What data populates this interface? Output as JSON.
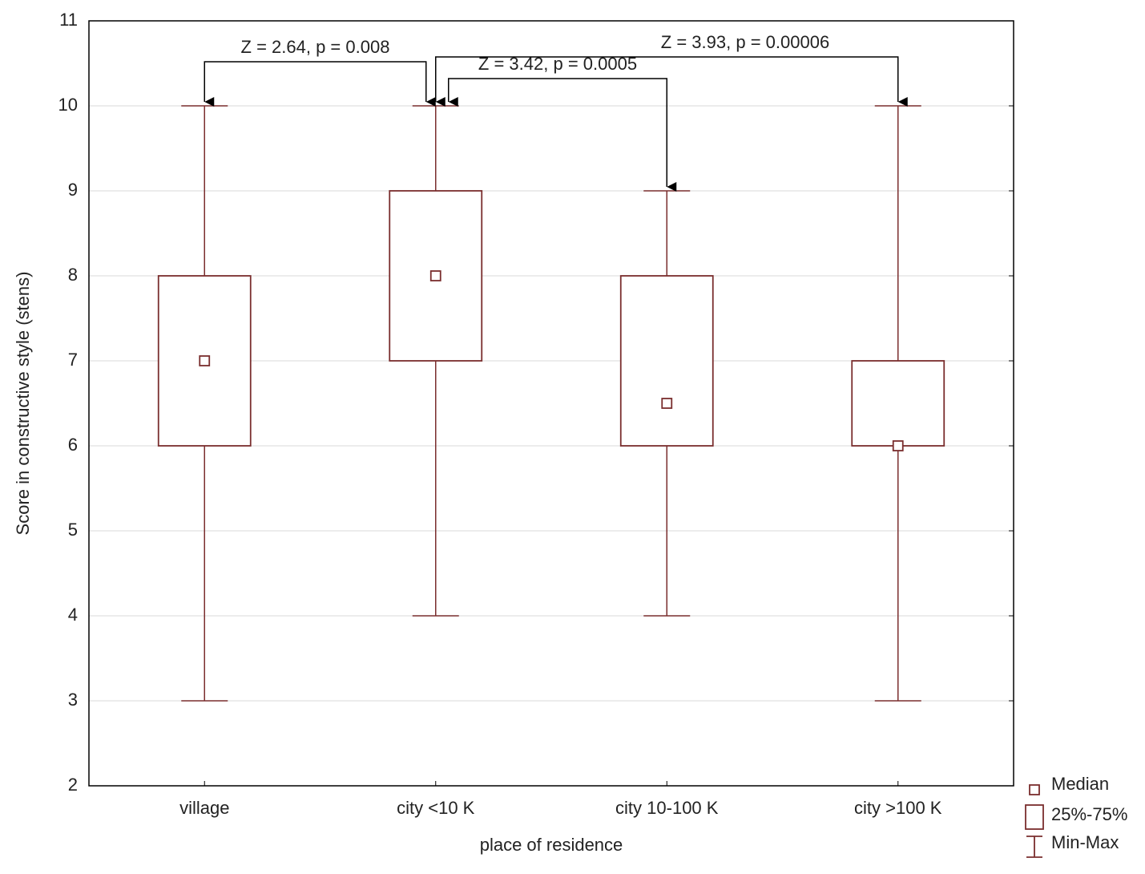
{
  "chart_data": {
    "type": "box",
    "x_label": "place of residence",
    "y_label": "Score in constructive style (stens)",
    "categories": [
      "village",
      "city <10 K",
      "city 10-100 K",
      "city >100 K"
    ],
    "min": [
      3,
      4,
      4,
      3
    ],
    "q1": [
      6,
      7,
      6,
      6
    ],
    "median": [
      7,
      8,
      6.5,
      6
    ],
    "q3": [
      8,
      9,
      8,
      7
    ],
    "max": [
      10,
      10,
      9,
      10
    ],
    "color": "#7a2e2e",
    "ylim": [
      2,
      11
    ],
    "yticks": [
      2,
      3,
      4,
      5,
      6,
      7,
      8,
      9,
      10,
      11
    ],
    "grid": true,
    "legend": [
      "Median",
      "25%-75%",
      "Min-Max"
    ],
    "annotations": [
      {
        "text": "Z = 2.64, p = 0.008",
        "between": [
          "village",
          "city <10 K"
        ]
      },
      {
        "text": "Z = 3.42, p = 0.0005",
        "between": [
          "city <10 K",
          "city 10-100 K"
        ]
      },
      {
        "text": "Z = 3.93, p = 0.00006",
        "between": [
          "city <10 K",
          "city >100 K"
        ]
      }
    ]
  }
}
